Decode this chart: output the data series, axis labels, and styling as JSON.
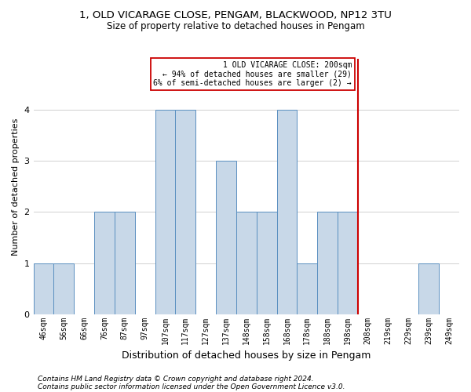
{
  "title1": "1, OLD VICARAGE CLOSE, PENGAM, BLACKWOOD, NP12 3TU",
  "title2": "Size of property relative to detached houses in Pengam",
  "xlabel": "Distribution of detached houses by size in Pengam",
  "ylabel": "Number of detached properties",
  "footer1": "Contains HM Land Registry data © Crown copyright and database right 2024.",
  "footer2": "Contains public sector information licensed under the Open Government Licence v3.0.",
  "categories": [
    "46sqm",
    "56sqm",
    "66sqm",
    "76sqm",
    "87sqm",
    "97sqm",
    "107sqm",
    "117sqm",
    "127sqm",
    "137sqm",
    "148sqm",
    "158sqm",
    "168sqm",
    "178sqm",
    "188sqm",
    "198sqm",
    "208sqm",
    "219sqm",
    "229sqm",
    "239sqm",
    "249sqm"
  ],
  "values": [
    1,
    1,
    0,
    2,
    2,
    0,
    4,
    4,
    0,
    3,
    2,
    2,
    4,
    1,
    2,
    2,
    0,
    0,
    0,
    1,
    0
  ],
  "bar_color": "#c8d8e8",
  "bar_edge_color": "#5a8fc0",
  "vline_color": "#cc0000",
  "vline_x": 15.5,
  "annotation_text": "1 OLD VICARAGE CLOSE: 200sqm\n← 94% of detached houses are smaller (29)\n6% of semi-detached houses are larger (2) →",
  "annotation_box_color": "#cc0000",
  "ylim": [
    0,
    5
  ],
  "yticks": [
    0,
    1,
    2,
    3,
    4
  ],
  "bg_color": "#ffffff",
  "grid_color": "#d0d0d0",
  "title1_fontsize": 9.5,
  "title2_fontsize": 8.5,
  "ylabel_fontsize": 8,
  "xlabel_fontsize": 9,
  "tick_fontsize": 7,
  "annotation_fontsize": 7,
  "footer_fontsize": 6.5
}
